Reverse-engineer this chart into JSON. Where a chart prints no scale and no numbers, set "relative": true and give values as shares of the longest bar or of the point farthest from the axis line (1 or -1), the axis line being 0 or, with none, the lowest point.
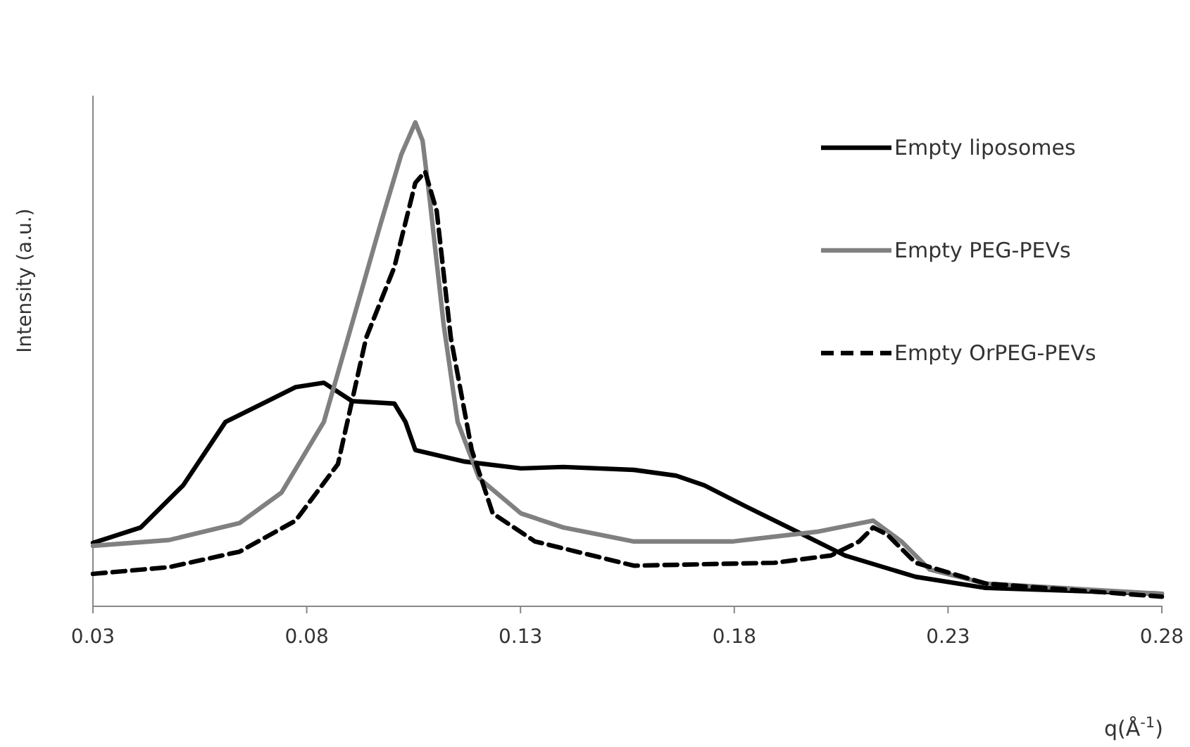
{
  "chart_data": {
    "type": "line",
    "relative": true,
    "xlabel": "q(Å$^{-1}$)",
    "ylabel": "Intensity (a.u.)",
    "xlim": [
      0.03,
      0.28
    ],
    "xticks": [
      0.03,
      0.08,
      0.13,
      0.18,
      0.23,
      0.28
    ],
    "legend": "right",
    "grid": false,
    "marker": "none",
    "series": [
      {
        "name": "Empty liposomes",
        "color": "#000000",
        "line_style": "solid",
        "x": [
          0.03,
          0.0412,
          0.0511,
          0.061,
          0.0708,
          0.0774,
          0.084,
          0.0906,
          0.1005,
          0.1031,
          0.1054,
          0.117,
          0.1301,
          0.14,
          0.1565,
          0.1664,
          0.173,
          0.1828,
          0.1927,
          0.2059,
          0.2224,
          0.2388,
          0.28
        ],
        "values": [
          0.131,
          0.163,
          0.25,
          0.381,
          0.424,
          0.453,
          0.462,
          0.424,
          0.419,
          0.381,
          0.323,
          0.299,
          0.285,
          0.288,
          0.282,
          0.27,
          0.25,
          0.206,
          0.163,
          0.105,
          0.061,
          0.038,
          0.026
        ]
      },
      {
        "name": "Empty PEG-PEVs",
        "color": "#808080",
        "line_style": "solid",
        "x": [
          0.03,
          0.0478,
          0.0643,
          0.0741,
          0.084,
          0.0906,
          0.0972,
          0.1021,
          0.1054,
          0.1071,
          0.1087,
          0.112,
          0.1153,
          0.1203,
          0.1301,
          0.14,
          0.1565,
          0.1795,
          0.1993,
          0.2125,
          0.2191,
          0.2257,
          0.2388,
          0.28
        ],
        "values": [
          0.125,
          0.137,
          0.172,
          0.235,
          0.381,
          0.584,
          0.788,
          0.933,
          1,
          0.962,
          0.846,
          0.584,
          0.381,
          0.265,
          0.192,
          0.163,
          0.134,
          0.134,
          0.154,
          0.177,
          0.134,
          0.076,
          0.047,
          0.026
        ]
      },
      {
        "name": "Empty OrPEG-PEVs",
        "color": "#000000",
        "line_style": "dashed",
        "x": [
          0.03,
          0.0478,
          0.0643,
          0.0774,
          0.0873,
          0.0939,
          0.1005,
          0.1054,
          0.1077,
          0.1104,
          0.1137,
          0.1186,
          0.1235,
          0.1334,
          0.1565,
          0.1894,
          0.2026,
          0.2092,
          0.2125,
          0.2158,
          0.2224,
          0.2388,
          0.28
        ],
        "values": [
          0.067,
          0.081,
          0.113,
          0.177,
          0.294,
          0.555,
          0.701,
          0.875,
          0.898,
          0.817,
          0.555,
          0.323,
          0.192,
          0.134,
          0.084,
          0.09,
          0.105,
          0.134,
          0.163,
          0.148,
          0.09,
          0.047,
          0.02
        ]
      }
    ]
  }
}
